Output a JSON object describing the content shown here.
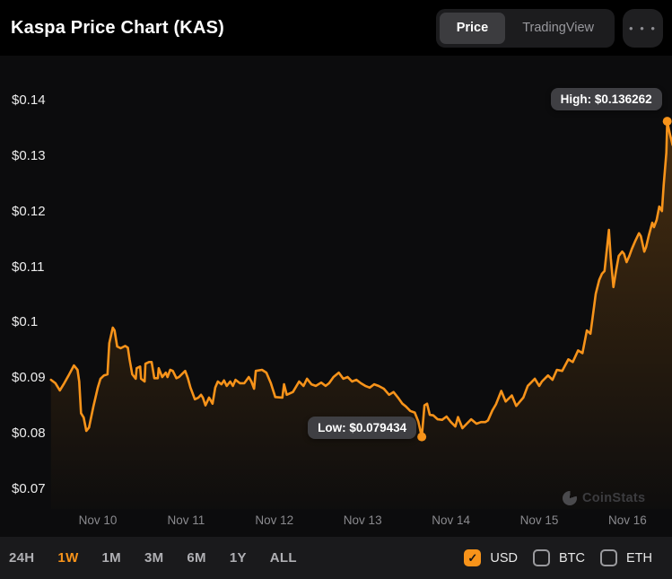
{
  "header": {
    "title": "Kaspa Price Chart (KAS)",
    "view_toggle": {
      "options": [
        "Price",
        "TradingView"
      ],
      "active_index": 0
    },
    "more_menu": "• • •"
  },
  "chart_data": {
    "type": "line",
    "title": "Kaspa Price Chart (KAS)",
    "symbol": "KAS",
    "quote_currency": "USD",
    "line_color": "#F7931A",
    "legend": "none",
    "grid": false,
    "y_axis": {
      "ticks": [
        {
          "value": 0.14,
          "label": "$0.14"
        },
        {
          "value": 0.13,
          "label": "$0.13"
        },
        {
          "value": 0.12,
          "label": "$0.12"
        },
        {
          "value": 0.11,
          "label": "$0.11"
        },
        {
          "value": 0.1,
          "label": "$0.1"
        },
        {
          "value": 0.09,
          "label": "$0.09"
        },
        {
          "value": 0.08,
          "label": "$0.08"
        },
        {
          "value": 0.07,
          "label": "$0.07"
        }
      ],
      "range": [
        0.064,
        0.148
      ]
    },
    "x_axis": {
      "unit": "day of November",
      "ticks": [
        {
          "value": 10,
          "label": "Nov 10"
        },
        {
          "value": 11,
          "label": "Nov 11"
        },
        {
          "value": 12,
          "label": "Nov 12"
        },
        {
          "value": 13,
          "label": "Nov 13"
        },
        {
          "value": 14,
          "label": "Nov 14"
        },
        {
          "value": 15,
          "label": "Nov 15"
        },
        {
          "value": 16,
          "label": "Nov 16"
        }
      ],
      "range": [
        9.45,
        16.55
      ]
    },
    "high": {
      "label": "High: $0.136262",
      "value": 0.136262,
      "day": 16.45
    },
    "low": {
      "label": "Low: $0.079434",
      "value": 0.079434,
      "day": 13.67
    },
    "watermark": "CoinStats",
    "points_unit": [
      "day_of_november",
      "price_usd"
    ],
    "points": [
      [
        9.47,
        0.0897
      ],
      [
        9.52,
        0.0891
      ],
      [
        9.57,
        0.0878
      ],
      [
        9.62,
        0.0891
      ],
      [
        9.67,
        0.0905
      ],
      [
        9.73,
        0.0923
      ],
      [
        9.77,
        0.0915
      ],
      [
        9.79,
        0.0894
      ],
      [
        9.81,
        0.0837
      ],
      [
        9.84,
        0.0829
      ],
      [
        9.87,
        0.0805
      ],
      [
        9.9,
        0.0811
      ],
      [
        9.95,
        0.0849
      ],
      [
        10.0,
        0.0883
      ],
      [
        10.03,
        0.0899
      ],
      [
        10.07,
        0.0905
      ],
      [
        10.11,
        0.0907
      ],
      [
        10.13,
        0.0963
      ],
      [
        10.17,
        0.0991
      ],
      [
        10.19,
        0.0986
      ],
      [
        10.22,
        0.0957
      ],
      [
        10.26,
        0.0954
      ],
      [
        10.31,
        0.0958
      ],
      [
        10.34,
        0.0955
      ],
      [
        10.36,
        0.0934
      ],
      [
        10.39,
        0.0907
      ],
      [
        10.43,
        0.0899
      ],
      [
        10.44,
        0.0918
      ],
      [
        10.48,
        0.0921
      ],
      [
        10.49,
        0.0899
      ],
      [
        10.53,
        0.0894
      ],
      [
        10.54,
        0.0926
      ],
      [
        10.58,
        0.0929
      ],
      [
        10.61,
        0.0929
      ],
      [
        10.64,
        0.09
      ],
      [
        10.68,
        0.09
      ],
      [
        10.69,
        0.0918
      ],
      [
        10.73,
        0.0902
      ],
      [
        10.77,
        0.091
      ],
      [
        10.79,
        0.0902
      ],
      [
        10.82,
        0.0915
      ],
      [
        10.85,
        0.0913
      ],
      [
        10.89,
        0.09
      ],
      [
        10.92,
        0.0902
      ],
      [
        10.95,
        0.0907
      ],
      [
        10.99,
        0.0913
      ],
      [
        11.02,
        0.09
      ],
      [
        11.05,
        0.0883
      ],
      [
        11.1,
        0.0862
      ],
      [
        11.14,
        0.0865
      ],
      [
        11.17,
        0.087
      ],
      [
        11.19,
        0.0865
      ],
      [
        11.22,
        0.0851
      ],
      [
        11.26,
        0.0865
      ],
      [
        11.3,
        0.0854
      ],
      [
        11.33,
        0.0883
      ],
      [
        11.36,
        0.0894
      ],
      [
        11.4,
        0.0889
      ],
      [
        11.43,
        0.0896
      ],
      [
        11.46,
        0.0886
      ],
      [
        11.5,
        0.0894
      ],
      [
        11.53,
        0.0886
      ],
      [
        11.56,
        0.0897
      ],
      [
        11.61,
        0.0891
      ],
      [
        11.66,
        0.0891
      ],
      [
        11.71,
        0.0902
      ],
      [
        11.74,
        0.0894
      ],
      [
        11.77,
        0.0881
      ],
      [
        11.79,
        0.0913
      ],
      [
        11.86,
        0.0915
      ],
      [
        11.91,
        0.091
      ],
      [
        11.96,
        0.0891
      ],
      [
        12.01,
        0.0866
      ],
      [
        12.09,
        0.0865
      ],
      [
        12.11,
        0.0889
      ],
      [
        12.14,
        0.087
      ],
      [
        12.21,
        0.0875
      ],
      [
        12.28,
        0.0894
      ],
      [
        12.33,
        0.0886
      ],
      [
        12.37,
        0.0899
      ],
      [
        12.42,
        0.0889
      ],
      [
        12.47,
        0.0886
      ],
      [
        12.53,
        0.0892
      ],
      [
        12.58,
        0.0886
      ],
      [
        12.62,
        0.0891
      ],
      [
        12.67,
        0.0902
      ],
      [
        12.73,
        0.091
      ],
      [
        12.78,
        0.0899
      ],
      [
        12.83,
        0.0902
      ],
      [
        12.88,
        0.0894
      ],
      [
        12.93,
        0.0897
      ],
      [
        12.98,
        0.0891
      ],
      [
        13.03,
        0.0886
      ],
      [
        13.08,
        0.0883
      ],
      [
        13.13,
        0.0889
      ],
      [
        13.18,
        0.0886
      ],
      [
        13.24,
        0.0881
      ],
      [
        13.3,
        0.087
      ],
      [
        13.35,
        0.0875
      ],
      [
        13.4,
        0.0865
      ],
      [
        13.45,
        0.0854
      ],
      [
        13.49,
        0.0849
      ],
      [
        13.54,
        0.0841
      ],
      [
        13.59,
        0.0838
      ],
      [
        13.63,
        0.0822
      ],
      [
        13.67,
        0.079434
      ],
      [
        13.7,
        0.0851
      ],
      [
        13.73,
        0.0854
      ],
      [
        13.76,
        0.0834
      ],
      [
        13.8,
        0.0833
      ],
      [
        13.85,
        0.0826
      ],
      [
        13.9,
        0.0825
      ],
      [
        13.95,
        0.0831
      ],
      [
        14.0,
        0.0821
      ],
      [
        14.05,
        0.0813
      ],
      [
        14.08,
        0.083
      ],
      [
        14.13,
        0.081
      ],
      [
        14.18,
        0.0818
      ],
      [
        14.23,
        0.0826
      ],
      [
        14.29,
        0.0818
      ],
      [
        14.34,
        0.0821
      ],
      [
        14.39,
        0.0821
      ],
      [
        14.42,
        0.0824
      ],
      [
        14.47,
        0.0842
      ],
      [
        14.51,
        0.0853
      ],
      [
        14.57,
        0.0877
      ],
      [
        14.62,
        0.0858
      ],
      [
        14.69,
        0.0869
      ],
      [
        14.74,
        0.085
      ],
      [
        14.82,
        0.0865
      ],
      [
        14.87,
        0.0886
      ],
      [
        14.95,
        0.0899
      ],
      [
        15.0,
        0.0886
      ],
      [
        15.03,
        0.0894
      ],
      [
        15.1,
        0.0905
      ],
      [
        15.15,
        0.0897
      ],
      [
        15.2,
        0.0915
      ],
      [
        15.26,
        0.0913
      ],
      [
        15.33,
        0.0934
      ],
      [
        15.38,
        0.0929
      ],
      [
        15.44,
        0.095
      ],
      [
        15.49,
        0.0945
      ],
      [
        15.54,
        0.0986
      ],
      [
        15.58,
        0.098
      ],
      [
        15.61,
        0.1015
      ],
      [
        15.64,
        0.1052
      ],
      [
        15.68,
        0.1077
      ],
      [
        15.71,
        0.1088
      ],
      [
        15.74,
        0.1093
      ],
      [
        15.79,
        0.1167
      ],
      [
        15.81,
        0.1117
      ],
      [
        15.84,
        0.1064
      ],
      [
        15.87,
        0.1093
      ],
      [
        15.9,
        0.112
      ],
      [
        15.94,
        0.1128
      ],
      [
        15.96,
        0.1124
      ],
      [
        15.99,
        0.1109
      ],
      [
        16.02,
        0.112
      ],
      [
        16.05,
        0.1133
      ],
      [
        16.09,
        0.1148
      ],
      [
        16.13,
        0.1161
      ],
      [
        16.15,
        0.1156
      ],
      [
        16.19,
        0.1128
      ],
      [
        16.21,
        0.1136
      ],
      [
        16.24,
        0.1156
      ],
      [
        16.28,
        0.118
      ],
      [
        16.3,
        0.1172
      ],
      [
        16.33,
        0.1185
      ],
      [
        16.36,
        0.1209
      ],
      [
        16.39,
        0.1201
      ],
      [
        16.41,
        0.1247
      ],
      [
        16.44,
        0.1306
      ],
      [
        16.45,
        0.136262
      ],
      [
        16.48,
        0.134
      ],
      [
        16.51,
        0.132
      ]
    ]
  },
  "footer": {
    "ranges": [
      {
        "label": "24H",
        "active": false
      },
      {
        "label": "1W",
        "active": true
      },
      {
        "label": "1M",
        "active": false
      },
      {
        "label": "3M",
        "active": false
      },
      {
        "label": "6M",
        "active": false
      },
      {
        "label": "1Y",
        "active": false
      },
      {
        "label": "ALL",
        "active": false
      }
    ],
    "currencies": [
      {
        "label": "USD",
        "checked": true
      },
      {
        "label": "BTC",
        "checked": false
      },
      {
        "label": "ETH",
        "checked": false
      }
    ],
    "checkmark": "✓"
  },
  "colors": {
    "accent": "#F7931A",
    "page_bg": "#000000",
    "panel_bg": "#0C0C0D",
    "footer_bg": "#1A1A1C",
    "tooltip_bg": "#3F3F43",
    "inactive_text": "#98989D"
  }
}
